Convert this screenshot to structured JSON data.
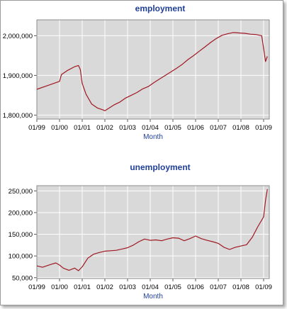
{
  "chart_data": [
    {
      "type": "line",
      "title": "employment",
      "xlabel": "Month",
      "ylabel": "",
      "xlim": [
        "1999-01",
        "2009-04"
      ],
      "ylim": [
        1790000,
        2040000
      ],
      "yticks": [
        1800000,
        1900000,
        2000000
      ],
      "ytick_labels": [
        "1,800,000",
        "1,900,000",
        "2,000,000"
      ],
      "xtick_labels": [
        "01/99",
        "01/00",
        "01/01",
        "01/02",
        "01/03",
        "01/04",
        "01/05",
        "01/06",
        "01/07",
        "01/08",
        "01/09"
      ],
      "grid": true,
      "line_color": "#a01822",
      "background_color": "#d9d9d9",
      "series": [
        {
          "x": [
            "1999-01",
            "1999-07",
            "2000-01",
            "2000-02",
            "2000-05",
            "2000-09",
            "2000-11",
            "2000-12",
            "2001-01",
            "2001-03",
            "2001-06",
            "2001-09",
            "2001-12",
            "2002-01",
            "2002-03",
            "2002-06",
            "2002-09",
            "2002-12",
            "2003-03",
            "2003-06",
            "2003-09",
            "2003-12",
            "2004-03",
            "2004-06",
            "2004-09",
            "2004-12",
            "2005-03",
            "2005-06",
            "2005-09",
            "2005-12",
            "2006-03",
            "2006-06",
            "2006-09",
            "2006-12",
            "2007-03",
            "2007-06",
            "2007-09",
            "2007-12",
            "2008-03",
            "2008-06",
            "2008-09",
            "2008-12",
            "2009-01",
            "2009-02",
            "2009-03"
          ],
          "values": [
            1865000,
            1875000,
            1885000,
            1902000,
            1912000,
            1922000,
            1925000,
            1915000,
            1880000,
            1853000,
            1828000,
            1818000,
            1813000,
            1811000,
            1817000,
            1826000,
            1833000,
            1843000,
            1850000,
            1857000,
            1866000,
            1872000,
            1882000,
            1891000,
            1900000,
            1909000,
            1918000,
            1928000,
            1940000,
            1950000,
            1961000,
            1972000,
            1983000,
            1993000,
            2001000,
            2005000,
            2008000,
            2007000,
            2006000,
            2004000,
            2003000,
            2000000,
            1968000,
            1935000,
            1948000
          ]
        }
      ]
    },
    {
      "type": "line",
      "title": "unemployment",
      "xlabel": "Month",
      "ylabel": "",
      "xlim": [
        "1999-01",
        "2009-04"
      ],
      "ylim": [
        48000,
        262000
      ],
      "yticks": [
        50000,
        100000,
        150000,
        200000,
        250000
      ],
      "ytick_labels": [
        "50,000",
        "100,000",
        "150,000",
        "200,000",
        "250,000"
      ],
      "xtick_labels": [
        "01/99",
        "01/00",
        "01/01",
        "01/02",
        "01/03",
        "01/04",
        "01/05",
        "01/06",
        "01/07",
        "01/08",
        "01/09"
      ],
      "grid": true,
      "line_color": "#a01822",
      "background_color": "#d9d9d9",
      "series": [
        {
          "x": [
            "1999-01",
            "1999-04",
            "1999-08",
            "1999-11",
            "2000-01",
            "2000-03",
            "2000-06",
            "2000-09",
            "2000-11",
            "2001-01",
            "2001-04",
            "2001-07",
            "2001-10",
            "2002-01",
            "2002-04",
            "2002-07",
            "2002-10",
            "2003-01",
            "2003-04",
            "2003-07",
            "2003-10",
            "2004-01",
            "2004-04",
            "2004-07",
            "2004-10",
            "2005-01",
            "2005-04",
            "2005-07",
            "2005-10",
            "2006-01",
            "2006-04",
            "2006-07",
            "2006-10",
            "2007-01",
            "2007-04",
            "2007-07",
            "2007-10",
            "2008-01",
            "2008-04",
            "2008-07",
            "2008-10",
            "2009-01",
            "2009-02",
            "2009-03"
          ],
          "values": [
            77000,
            74000,
            80000,
            84000,
            79000,
            72000,
            67000,
            72000,
            66000,
            75000,
            95000,
            104000,
            108000,
            111000,
            112000,
            113000,
            116000,
            119000,
            125000,
            133000,
            139000,
            136000,
            137000,
            135000,
            139000,
            142000,
            141000,
            135000,
            140000,
            146000,
            140000,
            136000,
            133000,
            129000,
            120000,
            115000,
            120000,
            123000,
            126000,
            143000,
            168000,
            190000,
            228000,
            254000
          ]
        }
      ]
    }
  ]
}
